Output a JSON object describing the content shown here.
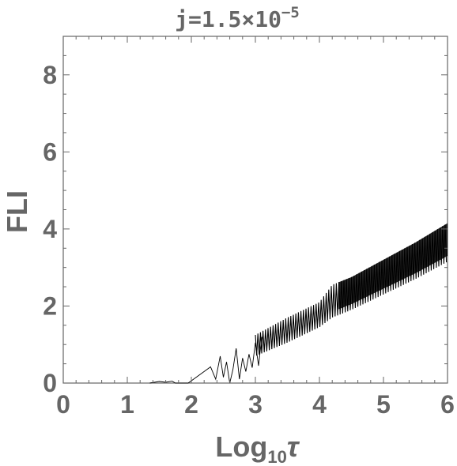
{
  "chart_data": {
    "type": "line",
    "title_base": "j=1.5×10",
    "title_exp": "−5",
    "xlabel_base": "Log",
    "xlabel_sub": "10",
    "xlabel_var": "τ",
    "ylabel": "FLI",
    "xlim": [
      0,
      6
    ],
    "ylim": [
      0,
      9
    ],
    "x_ticks": [
      "0",
      "1",
      "2",
      "3",
      "4",
      "5",
      "6"
    ],
    "y_ticks": [
      "0",
      "2",
      "4",
      "6",
      "8"
    ],
    "grid": false,
    "line_color": "#000000",
    "axis_color": "#666666",
    "series": [
      {
        "values_trace": [
          [
            1.35,
            0.0
          ],
          [
            1.5,
            0.04
          ],
          [
            1.6,
            0.02
          ],
          [
            1.7,
            0.05
          ],
          [
            1.75,
            0.0
          ],
          [
            1.85,
            0.0
          ],
          [
            1.95,
            0.0
          ],
          [
            2.1,
            0.18
          ],
          [
            2.2,
            0.3
          ],
          [
            2.3,
            0.42
          ],
          [
            2.38,
            0.1
          ],
          [
            2.45,
            0.7
          ],
          [
            2.5,
            0.15
          ],
          [
            2.55,
            0.55
          ],
          [
            2.6,
            0.0
          ],
          [
            2.65,
            0.35
          ],
          [
            2.7,
            0.9
          ],
          [
            2.75,
            0.1
          ],
          [
            2.8,
            0.65
          ],
          [
            2.85,
            0.3
          ],
          [
            2.9,
            0.75
          ],
          [
            2.95,
            0.4
          ],
          [
            3.0,
            1.05
          ],
          [
            3.05,
            0.45
          ],
          [
            3.1,
            1.2
          ]
        ],
        "envelope": {
          "x": [
            3.0,
            3.5,
            4.0,
            4.2,
            4.5,
            5.0,
            5.5,
            6.0
          ],
          "low": [
            0.7,
            1.05,
            1.45,
            1.7,
            1.9,
            2.3,
            2.7,
            3.15
          ],
          "high": [
            1.25,
            1.7,
            2.1,
            2.55,
            2.75,
            3.2,
            3.65,
            4.15
          ]
        }
      }
    ]
  }
}
